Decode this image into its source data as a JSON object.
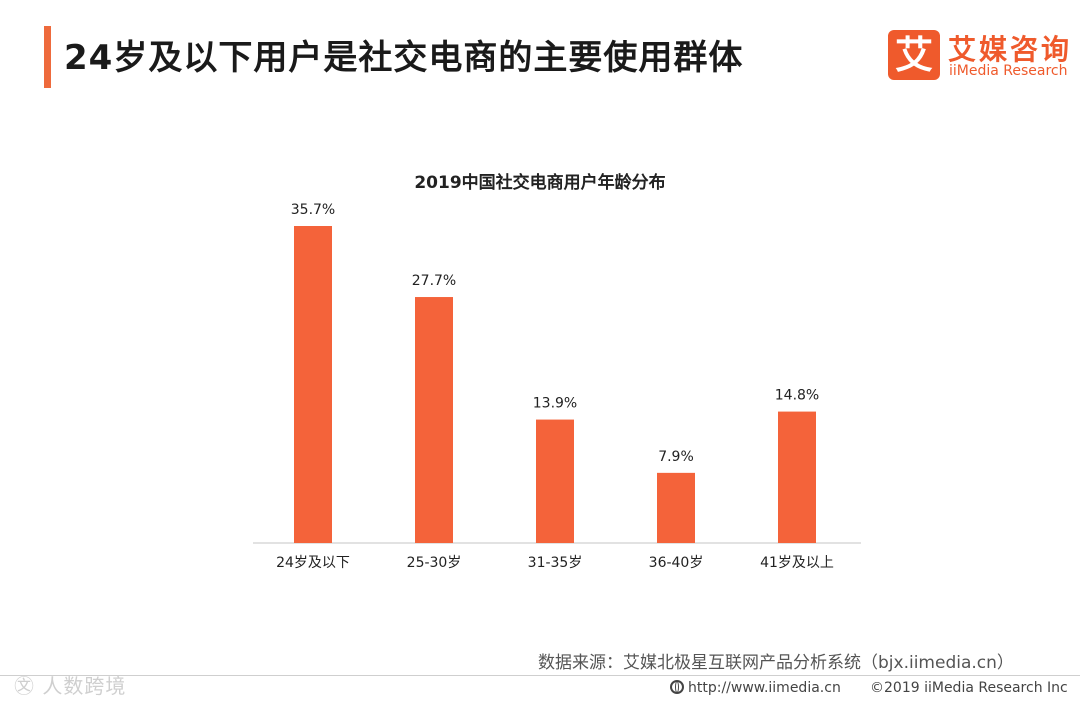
{
  "header": {
    "title": "24岁及以下用户是社交电商的主要使用群体"
  },
  "logo": {
    "mark": "艾",
    "name_cn": "艾媒咨询",
    "name_en": "iiMedia Research"
  },
  "chart_data": {
    "type": "bar",
    "title": "2019中国社交电商用户年龄分布",
    "categories": [
      "24岁及以下",
      "25-30岁",
      "31-35岁",
      "36-40岁",
      "41岁及以上"
    ],
    "values": [
      35.7,
      27.7,
      13.9,
      7.9,
      14.8
    ],
    "value_labels": [
      "35.7%",
      "27.7%",
      "13.9%",
      "7.9%",
      "14.8%"
    ],
    "unit": "%",
    "xlabel": "",
    "ylabel": "",
    "ylim": [
      0,
      40
    ],
    "grid": false,
    "legend": "none",
    "bar_color": "#f4633a"
  },
  "source": "数据来源：艾媒北极星互联网产品分析系统（bjx.iimedia.cn）",
  "footer": {
    "watermark": "㉆ 人数跨境",
    "url": "http://www.iimedia.cn",
    "copyright": "©2019  iiMedia Research  Inc"
  }
}
